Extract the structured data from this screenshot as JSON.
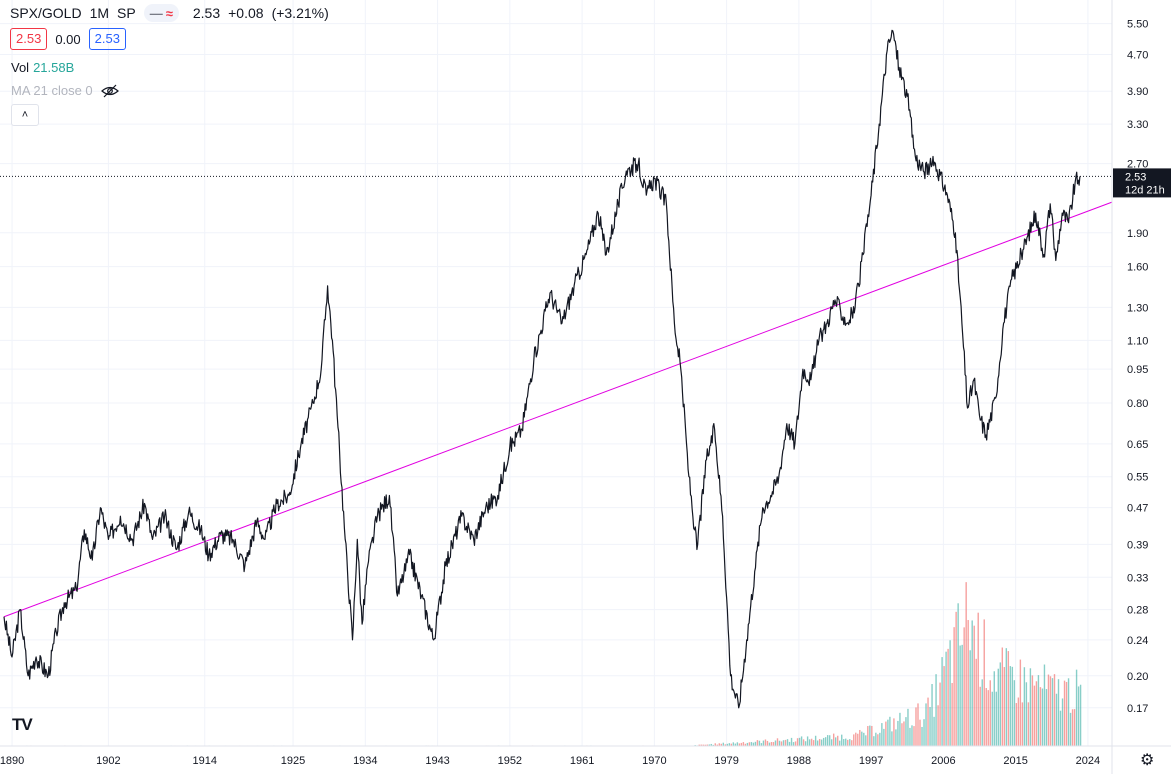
{
  "header": {
    "symbol": "SPX/GOLD",
    "interval": "1M",
    "source": "SP",
    "last": "2.53",
    "change": "+0.08",
    "change_pct": "(+3.21%)"
  },
  "quote": {
    "bid": "2.53",
    "spread": "0.00",
    "ask": "2.53"
  },
  "volume": {
    "label": "Vol",
    "value": "21.58B"
  },
  "indicator": {
    "label": "MA 21 close 0"
  },
  "price_tag": {
    "value": "2.53",
    "countdown": "12d 21h"
  },
  "colors": {
    "line": "#131722",
    "trendline": "#e100e1",
    "vol_up": "#26a69a",
    "vol_down": "#ef5350",
    "up": "#26a69a",
    "down": "#f23645",
    "blue": "#2962ff"
  },
  "chart_data": {
    "type": "line",
    "title": "SPX/GOLD",
    "y_scale": "log",
    "ylim": [
      0.14,
      6.2
    ],
    "xlim": [
      1888.5,
      2027
    ],
    "y_ticks": [
      "5.50",
      "4.70",
      "3.90",
      "3.30",
      "2.70",
      "1.90",
      "1.60",
      "1.30",
      "1.10",
      "0.95",
      "0.80",
      "0.65",
      "0.55",
      "0.47",
      "0.39",
      "0.33",
      "0.28",
      "0.24",
      "0.20",
      "0.17"
    ],
    "x_ticks": [
      "1890",
      "1902",
      "1914",
      "1925",
      "1934",
      "1943",
      "1952",
      "1961",
      "1970",
      "1979",
      "1988",
      "1997",
      "2006",
      "2015",
      "2024"
    ],
    "series": [
      {
        "x": [
          1889.0,
          1890.0,
          1891.0,
          1892.0,
          1893.0,
          1894.5,
          1895.5,
          1896.5,
          1898.0,
          1899.0,
          1900.0,
          1901.0,
          1902.0,
          1903.5,
          1905.0,
          1906.5,
          1907.5,
          1909.0,
          1910.5,
          1912.0,
          1913.5,
          1914.5,
          1916.0,
          1917.5,
          1919.0,
          1920.5,
          1921.5,
          1923.0,
          1924.5,
          1926.0,
          1927.5,
          1928.5,
          1929.3,
          1929.9,
          1930.5,
          1931.5,
          1932.4,
          1933.0,
          1933.6,
          1934.3,
          1935.5,
          1937.0,
          1938.0,
          1939.5,
          1941.0,
          1942.5,
          1944.0,
          1946.0,
          1947.5,
          1949.0,
          1950.5,
          1952.0,
          1953.5,
          1955.0,
          1957.0,
          1958.5,
          1960.0,
          1961.5,
          1963.0,
          1964.0,
          1965.5,
          1966.5,
          1968.0,
          1969.0,
          1970.0,
          1971.5,
          1972.5,
          1973.3,
          1974.3,
          1975.3,
          1976.5,
          1977.5,
          1978.5,
          1979.5,
          1980.5,
          1981.5,
          1982.5,
          1983.5,
          1984.5,
          1985.5,
          1986.5,
          1987.5,
          1988.5,
          1989.5,
          1990.5,
          1991.5,
          1992.5,
          1994.0,
          1995.0,
          1996.0,
          1997.0,
          1998.0,
          1999.0,
          1999.7,
          2000.5,
          2001.5,
          2002.5,
          2003.5,
          2005.0,
          2006.5,
          2007.5,
          2008.3,
          2009.0,
          2009.8,
          2010.5,
          2011.3,
          2012.5,
          2013.5,
          2014.5,
          2016.0,
          2017.5,
          2018.5,
          2019.3,
          2020.0,
          2020.8,
          2021.6,
          2022.4,
          2023.0
        ],
        "y": [
          0.27,
          0.22,
          0.28,
          0.2,
          0.22,
          0.2,
          0.25,
          0.29,
          0.31,
          0.42,
          0.36,
          0.47,
          0.4,
          0.45,
          0.4,
          0.48,
          0.4,
          0.45,
          0.38,
          0.46,
          0.42,
          0.37,
          0.41,
          0.4,
          0.35,
          0.44,
          0.4,
          0.48,
          0.5,
          0.65,
          0.8,
          0.95,
          1.45,
          1.1,
          0.75,
          0.4,
          0.24,
          0.4,
          0.26,
          0.35,
          0.45,
          0.5,
          0.3,
          0.37,
          0.3,
          0.24,
          0.35,
          0.45,
          0.4,
          0.47,
          0.5,
          0.64,
          0.7,
          1.0,
          1.4,
          1.2,
          1.45,
          1.7,
          2.1,
          1.7,
          2.2,
          2.6,
          2.7,
          2.3,
          2.5,
          2.2,
          1.2,
          0.95,
          0.55,
          0.38,
          0.6,
          0.7,
          0.45,
          0.2,
          0.17,
          0.24,
          0.34,
          0.47,
          0.5,
          0.55,
          0.72,
          0.65,
          0.95,
          0.9,
          1.1,
          1.2,
          1.35,
          1.2,
          1.3,
          1.7,
          2.3,
          3.3,
          4.8,
          5.3,
          4.4,
          3.8,
          2.8,
          2.6,
          2.7,
          2.3,
          1.9,
          1.2,
          0.78,
          0.9,
          0.75,
          0.68,
          0.82,
          1.2,
          1.5,
          1.75,
          2.1,
          1.7,
          2.2,
          1.65,
          2.1,
          2.0,
          2.45,
          2.53
        ]
      }
    ],
    "trendline": {
      "x": [
        1889.0,
        2027.0
      ],
      "y": [
        0.27,
        2.22
      ]
    },
    "volume_note": "monthly volume bars, rising from ~1975, peak ~2009"
  }
}
